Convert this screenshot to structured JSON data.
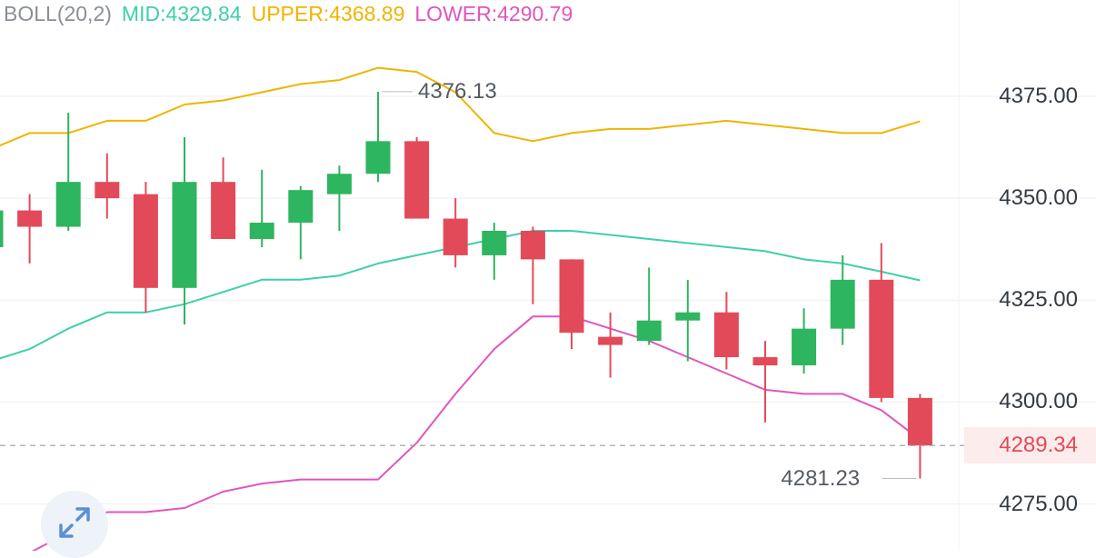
{
  "legend": {
    "indicator": "BOLL(20,2)",
    "mid": "MID:4329.84",
    "upper": "UPPER:4368.89",
    "lower": "LOWER:4290.79"
  },
  "colors": {
    "up": "#2eb55f",
    "down": "#e34a59",
    "mid": "#3fcfaa",
    "upper": "#f0b400",
    "lower": "#e055c0",
    "grid": "#eeeeee",
    "axis_text": "#333a42",
    "legend_label": "#8a8f96"
  },
  "current_price": "4289.34",
  "max_label": "4376.13",
  "min_label": "4281.23",
  "expand_icon": "expand-arrows-icon",
  "chart_data": {
    "type": "candlestick",
    "ylim": [
      4265,
      4385
    ],
    "y_ticks": [
      "4375.00",
      "4350.00",
      "4325.00",
      "4300.00",
      "4275.00"
    ],
    "grid": true,
    "candles": [
      {
        "open": 4338,
        "close": 4347,
        "high": 4348,
        "low": 4330
      },
      {
        "open": 4347,
        "close": 4343,
        "high": 4351,
        "low": 4334
      },
      {
        "open": 4343,
        "close": 4354,
        "high": 4371,
        "low": 4342
      },
      {
        "open": 4354,
        "close": 4350,
        "high": 4361,
        "low": 4345
      },
      {
        "open": 4351,
        "close": 4328,
        "high": 4354,
        "low": 4322
      },
      {
        "open": 4328,
        "close": 4354,
        "high": 4365,
        "low": 4319
      },
      {
        "open": 4354,
        "close": 4340,
        "high": 4360,
        "low": 4340
      },
      {
        "open": 4340,
        "close": 4344,
        "high": 4357,
        "low": 4338
      },
      {
        "open": 4344,
        "close": 4352,
        "high": 4353,
        "low": 4335
      },
      {
        "open": 4351,
        "close": 4356,
        "high": 4358,
        "low": 4342
      },
      {
        "open": 4356,
        "close": 4364,
        "high": 4376.13,
        "low": 4354
      },
      {
        "open": 4364,
        "close": 4345,
        "high": 4365,
        "low": 4345
      },
      {
        "open": 4345,
        "close": 4336,
        "high": 4350,
        "low": 4333
      },
      {
        "open": 4336,
        "close": 4342,
        "high": 4344,
        "low": 4330
      },
      {
        "open": 4342,
        "close": 4335,
        "high": 4343,
        "low": 4324
      },
      {
        "open": 4335,
        "close": 4317,
        "high": 4335,
        "low": 4313
      },
      {
        "open": 4316,
        "close": 4314,
        "high": 4322,
        "low": 4306
      },
      {
        "open": 4315,
        "close": 4320,
        "high": 4333,
        "low": 4314
      },
      {
        "open": 4320,
        "close": 4322,
        "high": 4330,
        "low": 4310
      },
      {
        "open": 4322,
        "close": 4311,
        "high": 4327,
        "low": 4308
      },
      {
        "open": 4311,
        "close": 4309,
        "high": 4315,
        "low": 4295
      },
      {
        "open": 4309,
        "close": 4318,
        "high": 4323,
        "low": 4307
      },
      {
        "open": 4318,
        "close": 4330,
        "high": 4336,
        "low": 4314
      },
      {
        "open": 4330,
        "close": 4301,
        "high": 4339,
        "low": 4300
      },
      {
        "open": 4301,
        "close": 4289.34,
        "high": 4302,
        "low": 4281.23
      }
    ],
    "mid": [
      4310,
      4313,
      4318,
      4322,
      4322,
      4324,
      4327,
      4330,
      4330,
      4331,
      4334,
      4336,
      4338,
      4340,
      4342,
      4342,
      4341,
      4340,
      4339,
      4338,
      4337,
      4335,
      4334,
      4332,
      4329.84
    ],
    "upper": [
      4362,
      4366,
      4366,
      4369,
      4369,
      4373,
      4374,
      4376,
      4378,
      4379,
      4382,
      4381,
      4376,
      4366,
      4364,
      4366,
      4367,
      4367,
      4368,
      4369,
      4368,
      4367,
      4366,
      4366,
      4368.89
    ],
    "lower": [
      4258,
      4263,
      4268,
      4273,
      4273,
      4274,
      4278,
      4280,
      4281,
      4281,
      4281,
      4290,
      4302,
      4313,
      4321,
      4321,
      4318,
      4315,
      4311,
      4307,
      4303,
      4302,
      4302,
      4298,
      4290.79
    ]
  }
}
